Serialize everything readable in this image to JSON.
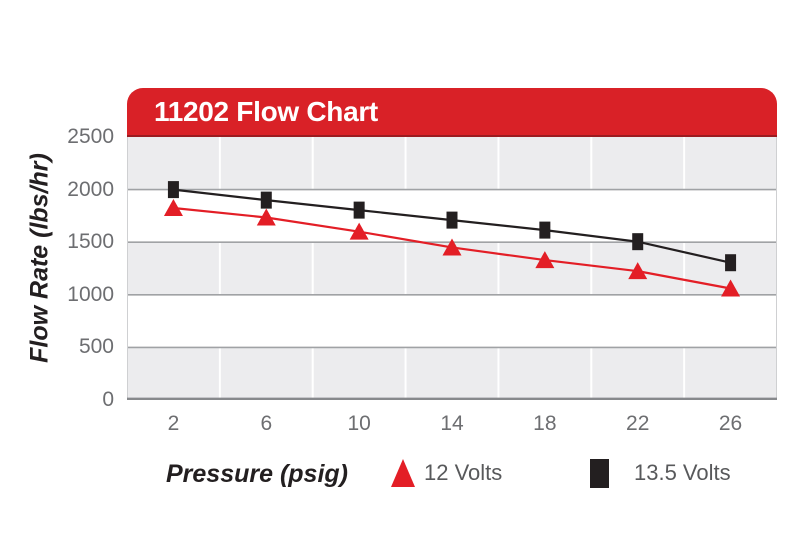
{
  "chart": {
    "title": "11202 Flow Chart",
    "y_axis_title": "Flow Rate (lbs/hr)",
    "x_axis_title": "Pressure (psig)",
    "legend": [
      {
        "label": "12 Volts",
        "marker": "triangle-up",
        "color": "#e31e26"
      },
      {
        "label": "13.5 Volts",
        "marker": "square",
        "color": "#231f20"
      }
    ]
  },
  "chart_data": {
    "type": "line",
    "title": "11202 Flow Chart",
    "xlabel": "Pressure (psig)",
    "ylabel": "Flow Rate (lbs/hr)",
    "categories": [
      "2",
      "6",
      "10",
      "14",
      "18",
      "22",
      "26"
    ],
    "series": [
      {
        "name": "12 Volts",
        "marker": "triangle-up",
        "color": "#e31e26",
        "values": [
          1825,
          1735,
          1600,
          1450,
          1330,
          1225,
          1060
        ]
      },
      {
        "name": "13.5 Volts",
        "marker": "square",
        "color": "#231f20",
        "values": [
          2000,
          1900,
          1805,
          1710,
          1615,
          1505,
          1305
        ]
      }
    ],
    "ylim": [
      0,
      2500
    ],
    "yticks": [
      0,
      500,
      1000,
      1500,
      2000,
      2500
    ],
    "grid": {
      "horizontal_lines": true,
      "vertical_lines_at_category_boundaries": true,
      "alternating_bands": true
    },
    "legend_position": "bottom",
    "colors": {
      "brand_red": "#d92127",
      "header_shadow_red": "#9b1b20",
      "band_gray": "#ececee",
      "h_gridline": "#a0a2a5",
      "v_gridline": "#ffffff",
      "axis_line": "#87898c",
      "plot_border": "#cfd0d2",
      "tick_text": "#6d6e71",
      "legend_text": "#58595b",
      "series_red": "#e31e26",
      "series_black": "#231f20"
    }
  }
}
